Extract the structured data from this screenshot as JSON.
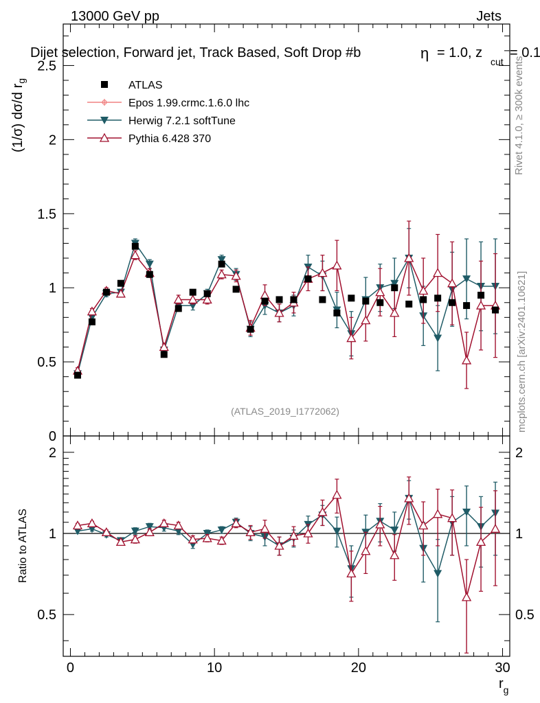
{
  "header": {
    "energy_label": "13000 GeV pp",
    "category_label": "Jets",
    "selection_title": "Dijet selection, Forward jet, Track Based, Soft Drop #b",
    "selection_params": "= 1.0, z",
    "zcut_sub": "cut",
    "zcut_tail": "= 0.1",
    "beta_glyph": "η"
  },
  "side_labels": {
    "rivet": "Rivet 4.1.0, ≥ 300k events",
    "mcplots": "mcplots.cern.ch [arXiv:2401.10621]",
    "analysis_id": "(ATLAS_2019_I1772062)"
  },
  "axes": {
    "main_ylabel_main": "(1/σ) dσ/d r",
    "main_ylabel_sub": "g",
    "ratio_ylabel": "Ratio to ATLAS",
    "xlabel_main": "r",
    "xlabel_sub": "g",
    "main_yticks": [
      "0",
      "0.5",
      "1",
      "1.5",
      "2",
      "2.5"
    ],
    "ratio_yticks": [
      "0.5",
      "1",
      "2"
    ],
    "xticks": [
      "0",
      "10",
      "20",
      "30"
    ]
  },
  "chart_data": {
    "type": "scatter",
    "xlim": [
      -0.5,
      30.5
    ],
    "ylim_main": [
      0,
      2.78
    ],
    "ylim_ratio": [
      0.35,
      2.3
    ],
    "x": [
      0.5,
      1.5,
      2.5,
      3.5,
      4.5,
      5.5,
      6.5,
      7.5,
      8.5,
      9.5,
      10.5,
      11.5,
      12.5,
      13.5,
      14.5,
      15.5,
      16.5,
      17.5,
      18.5,
      19.5,
      20.5,
      21.5,
      22.5,
      23.5,
      24.5,
      25.5,
      26.5,
      27.5,
      28.5,
      29.5
    ],
    "legend": [
      {
        "name": "ATLAS",
        "color": "#000000",
        "marker": "square"
      },
      {
        "name": "Epos 1.99.crmc.1.6.0 lhc",
        "color": "#f08080",
        "marker": "cross"
      },
      {
        "name": "Herwig 7.2.1 softTune",
        "color": "#1f5b66",
        "marker": "triangle-down"
      },
      {
        "name": "Pythia 6.428 370",
        "color": "#a0102e",
        "marker": "triangle-up-open"
      }
    ],
    "atlas": [
      0.41,
      0.77,
      0.97,
      1.03,
      1.28,
      1.09,
      0.55,
      0.86,
      0.97,
      0.96,
      1.16,
      0.99,
      0.72,
      0.91,
      0.92,
      0.92,
      1.06,
      0.92,
      0.83,
      0.93,
      0.91,
      0.9,
      1.0,
      0.89,
      0.92,
      0.93,
      0.9,
      0.88,
      0.95,
      0.85
    ],
    "herwig": [
      0.42,
      0.8,
      0.96,
      0.97,
      1.3,
      1.16,
      0.58,
      0.88,
      0.88,
      0.96,
      1.19,
      1.09,
      0.72,
      0.88,
      0.83,
      0.88,
      1.14,
      1.08,
      0.85,
      0.69,
      0.92,
      1.0,
      1.03,
      1.2,
      0.81,
      0.66,
      0.99,
      1.06,
      1.01,
      1.01
    ],
    "herwig_err": [
      0.02,
      0.02,
      0.02,
      0.02,
      0.03,
      0.03,
      0.02,
      0.03,
      0.03,
      0.03,
      0.03,
      0.04,
      0.05,
      0.06,
      0.06,
      0.07,
      0.08,
      0.1,
      0.12,
      0.15,
      0.15,
      0.16,
      0.17,
      0.2,
      0.2,
      0.22,
      0.25,
      0.27,
      0.3,
      0.32
    ],
    "pythia": [
      0.44,
      0.84,
      0.98,
      0.96,
      1.22,
      1.1,
      0.6,
      0.92,
      0.92,
      0.92,
      1.09,
      1.08,
      0.73,
      0.95,
      0.83,
      0.9,
      1.06,
      1.1,
      1.15,
      0.66,
      0.78,
      0.97,
      0.83,
      1.2,
      0.98,
      1.1,
      1.03,
      0.51,
      0.88,
      0.88
    ],
    "pythia_err": [
      0.02,
      0.02,
      0.02,
      0.02,
      0.03,
      0.03,
      0.02,
      0.03,
      0.03,
      0.03,
      0.03,
      0.04,
      0.05,
      0.07,
      0.06,
      0.07,
      0.08,
      0.12,
      0.17,
      0.14,
      0.14,
      0.16,
      0.16,
      0.25,
      0.22,
      0.26,
      0.28,
      0.19,
      0.3,
      0.35
    ],
    "herwig_ratio": [
      1.02,
      1.04,
      0.99,
      0.94,
      1.02,
      1.06,
      1.05,
      1.02,
      0.91,
      1.0,
      1.03,
      1.1,
      1.0,
      0.97,
      0.9,
      0.96,
      1.08,
      1.17,
      1.02,
      0.74,
      1.01,
      1.11,
      1.03,
      1.35,
      0.88,
      0.71,
      1.1,
      1.2,
      1.06,
      1.19
    ],
    "pythia_ratio": [
      1.07,
      1.09,
      1.01,
      0.93,
      0.95,
      1.01,
      1.09,
      1.07,
      0.95,
      0.96,
      0.94,
      1.09,
      1.01,
      1.04,
      0.9,
      0.98,
      1.0,
      1.2,
      1.39,
      0.71,
      0.86,
      1.08,
      0.83,
      1.35,
      1.07,
      1.18,
      1.14,
      0.58,
      0.93,
      1.04
    ],
    "herwig_ratio_err": [
      0.02,
      0.02,
      0.02,
      0.02,
      0.03,
      0.03,
      0.03,
      0.03,
      0.03,
      0.03,
      0.03,
      0.04,
      0.06,
      0.07,
      0.07,
      0.07,
      0.08,
      0.1,
      0.13,
      0.16,
      0.16,
      0.18,
      0.17,
      0.22,
      0.22,
      0.24,
      0.27,
      0.3,
      0.31,
      0.36
    ],
    "pythia_ratio_err": [
      0.02,
      0.02,
      0.02,
      0.02,
      0.03,
      0.03,
      0.03,
      0.03,
      0.03,
      0.03,
      0.03,
      0.04,
      0.06,
      0.08,
      0.07,
      0.08,
      0.08,
      0.13,
      0.2,
      0.15,
      0.15,
      0.18,
      0.16,
      0.27,
      0.24,
      0.28,
      0.31,
      0.22,
      0.32,
      0.4
    ]
  }
}
